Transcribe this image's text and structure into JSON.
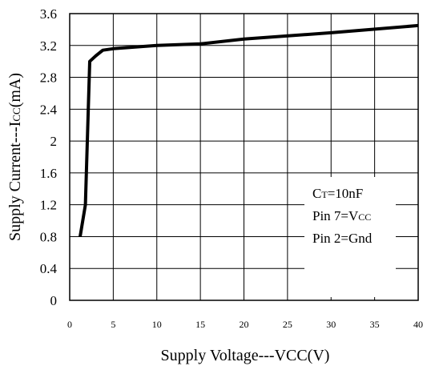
{
  "chart_data": {
    "type": "line",
    "xlabel": "Supply Voltage---VCC(V)",
    "ylabel": "Supply Current---I",
    "ylabel_sub": "CC",
    "ylabel_unit": "(mA)",
    "xlim": [
      0,
      40
    ],
    "ylim": [
      0,
      3.6
    ],
    "x_ticks": [
      "0",
      "5",
      "10",
      "15",
      "20",
      "25",
      "30",
      "35",
      "40"
    ],
    "y_ticks": [
      "0",
      "0.4",
      "0.8",
      "1.2",
      "1.6",
      "2",
      "2.4",
      "2.8",
      "3.2",
      "3.6"
    ],
    "grid": true,
    "series": [
      {
        "x": [
          1.2,
          1.8,
          2.3,
          3.0,
          3.8,
          5,
          10,
          15,
          20,
          30,
          40
        ],
        "y": [
          0.8,
          1.2,
          3.0,
          3.07,
          3.14,
          3.16,
          3.2,
          3.22,
          3.28,
          3.36,
          3.45
        ]
      }
    ],
    "legend": {
      "line1_main": "C",
      "line1_sub": "T",
      "line1_rest": "=10nF",
      "line2_main": "Pin 7=V",
      "line2_sub": "CC",
      "line3": "Pin 2=Gnd"
    }
  }
}
